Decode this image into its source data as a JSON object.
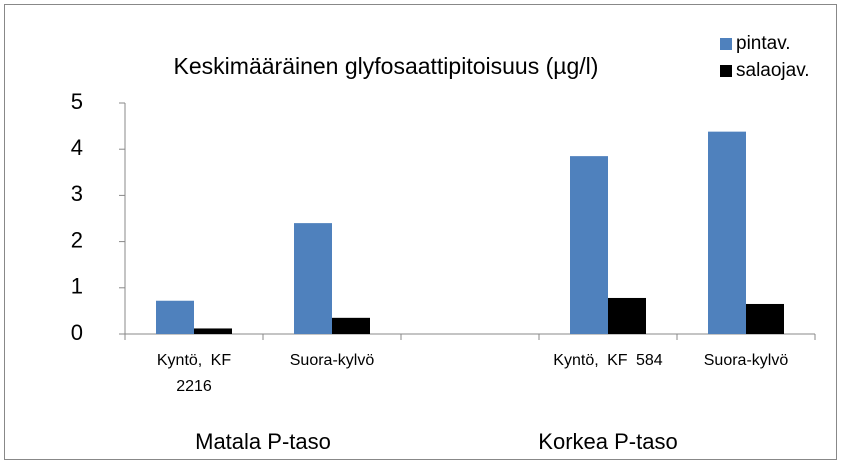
{
  "chart_data": {
    "type": "bar",
    "title": "Keskimääräinen glyfosaattipitoisuus  (µg/l)",
    "categories": [
      "Kyntö, KF 2216",
      "Suora-kylvö",
      null,
      "Kyntö, KF 584",
      "Suora-kylvö"
    ],
    "series": [
      {
        "name": "pintav.",
        "color": "#4f81bd",
        "values": [
          0.72,
          2.4,
          null,
          3.85,
          4.38
        ]
      },
      {
        "name": "salaojav.",
        "color": "#000000",
        "values": [
          0.12,
          0.35,
          null,
          0.78,
          0.65
        ]
      }
    ],
    "group_labels": [
      "Matala P-taso",
      "Korkea P-taso"
    ],
    "ylim": [
      0,
      5
    ],
    "yticks": [
      0,
      1,
      2,
      3,
      4,
      5
    ],
    "grid": false,
    "legend": "top-right"
  }
}
